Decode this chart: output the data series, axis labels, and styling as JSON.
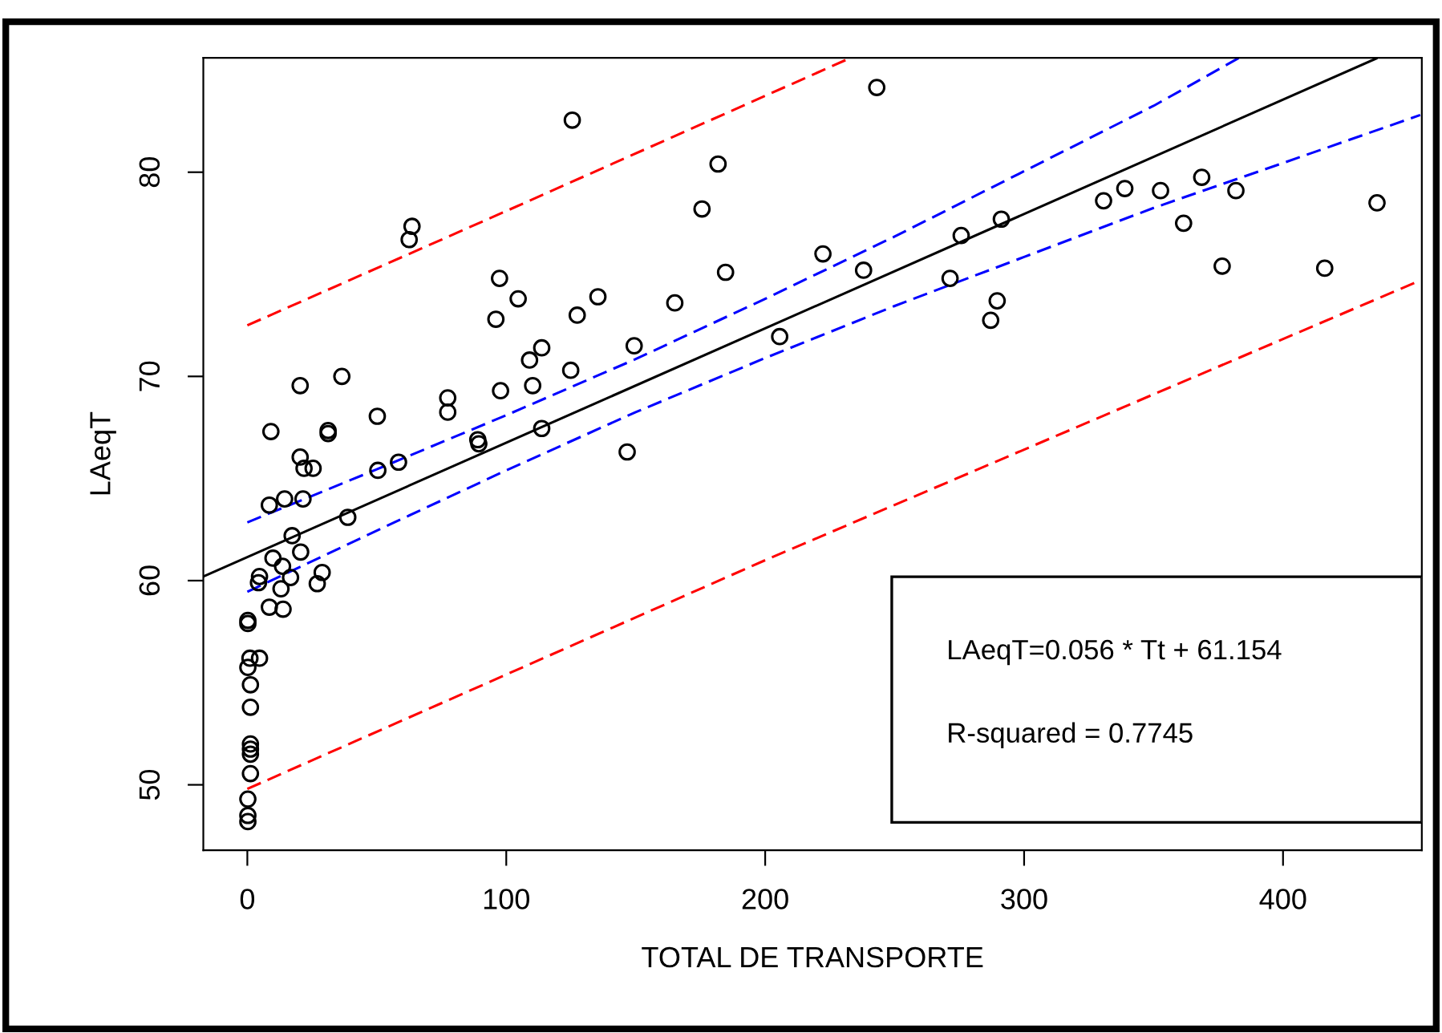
{
  "chart_data": {
    "type": "scatter",
    "xlabel": "TOTAL DE TRANSPORTE",
    "ylabel": "LAeqT",
    "xlim": [
      -17,
      453.6
    ],
    "ylim": [
      46.8,
      85.6
    ],
    "xticks": [
      0,
      100,
      200,
      300,
      400
    ],
    "yticks": [
      50,
      60,
      70,
      80
    ],
    "grid": false,
    "legend": false,
    "annotations": [
      "LAeqT=0.056 * Tt + 61.154",
      "R-squared = 0.7745"
    ],
    "series": [
      {
        "color": "#000000",
        "marker": "circle",
        "x": [
          125.5,
          181.8,
          175.6,
          184.7,
          63.6,
          62.5,
          97.4,
          104.6,
          96.0,
          127.4,
          135.4,
          165.1,
          149.4,
          113.7,
          109.0,
          124.9,
          110.2,
          97.8,
          20.4,
          36.5,
          9.1,
          31.2,
          31.2,
          50.2,
          77.4,
          77.4,
          89.0,
          89.4,
          113.7,
          146.7,
          20.4,
          21.9,
          25.4,
          50.4,
          58.4,
          8.5,
          14.4,
          21.5,
          38.8,
          17.3,
          9.9,
          20.6,
          13.6,
          4.7,
          4.3,
          16.7,
          13.0,
          28.9,
          27.0,
          8.5,
          13.8,
          0.2,
          0.2,
          1.0,
          4.7,
          0.2,
          1.2,
          1.2,
          1.2,
          1.2,
          1.2,
          1.2,
          0.2,
          0.2,
          0.2,
          243.1,
          222.3,
          238.0,
          205.6,
          275.7,
          291.2,
          271.4,
          289.6,
          287.1,
          330.7,
          338.9,
          352.7,
          368.6,
          381.8,
          361.6,
          376.5,
          416.1,
          436.3
        ],
        "values": [
          82.55,
          80.4,
          78.2,
          75.1,
          77.35,
          76.7,
          74.8,
          73.8,
          72.8,
          73.0,
          73.9,
          73.6,
          71.5,
          71.4,
          70.8,
          70.3,
          69.55,
          69.3,
          69.55,
          70.0,
          67.3,
          67.35,
          67.2,
          68.05,
          68.95,
          68.25,
          66.9,
          66.7,
          67.45,
          66.3,
          66.05,
          65.5,
          65.5,
          65.4,
          65.8,
          63.7,
          64.0,
          64.0,
          63.1,
          62.2,
          61.1,
          61.4,
          60.7,
          60.2,
          59.9,
          60.15,
          59.6,
          60.4,
          59.85,
          58.7,
          58.6,
          58.05,
          57.9,
          56.2,
          56.2,
          55.75,
          54.9,
          53.8,
          52.0,
          51.75,
          51.5,
          50.55,
          49.3,
          48.5,
          48.2,
          84.15,
          76.0,
          75.2,
          71.95,
          76.9,
          77.7,
          74.8,
          73.7,
          72.75,
          78.6,
          79.2,
          79.1,
          79.75,
          79.1,
          77.5,
          75.4,
          75.3,
          78.5
        ]
      },
      {
        "type": "line",
        "color": "#000000",
        "line_style": "solid",
        "marker": "none",
        "x": [
          -17,
          436
        ],
        "values": [
          60.2,
          85.57
        ]
      },
      {
        "type": "line",
        "color": "#0000ff",
        "line_style": "dashed",
        "marker": "none",
        "x": [
          0,
          50,
          100,
          150,
          200,
          250,
          300,
          350,
          383
        ],
        "values": [
          62.85,
          65.45,
          68.1,
          70.85,
          73.8,
          76.85,
          80.05,
          83.25,
          85.6
        ]
      },
      {
        "type": "line",
        "color": "#0000ff",
        "line_style": "dashed",
        "marker": "none",
        "x": [
          0,
          50,
          100,
          150,
          200,
          250,
          300,
          350,
          400,
          453
        ],
        "values": [
          59.45,
          62.45,
          65.4,
          68.25,
          70.9,
          73.45,
          75.85,
          78.25,
          80.45,
          82.8
        ]
      },
      {
        "type": "line",
        "color": "#ff0000",
        "line_style": "dashed",
        "marker": "none",
        "x": [
          0,
          100,
          233
        ],
        "values": [
          72.5,
          78.1,
          85.6
        ]
      },
      {
        "type": "line",
        "color": "#ff0000",
        "line_style": "dashed",
        "marker": "none",
        "x": [
          0,
          200,
          453
        ],
        "values": [
          49.8,
          61.0,
          74.7
        ]
      }
    ]
  }
}
